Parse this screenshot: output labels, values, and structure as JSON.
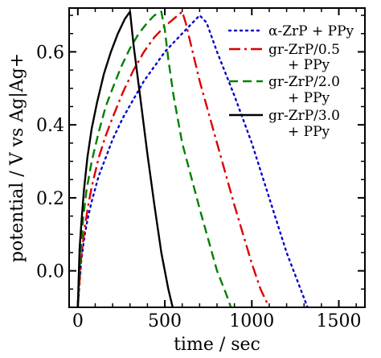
{
  "chart_data": {
    "type": "line",
    "title": "",
    "xlabel": "time / sec",
    "ylabel": "potential / V vs Ag|Ag+",
    "xlim": [
      -50,
      1650
    ],
    "ylim": [
      -0.1,
      0.72
    ],
    "x_ticks": [
      0,
      500,
      1000,
      1500
    ],
    "x_tick_labels": [
      "0",
      "500",
      "1000",
      "1500"
    ],
    "y_ticks": [
      0.0,
      0.2,
      0.4,
      0.6
    ],
    "y_tick_labels": [
      "0.0",
      "0.2",
      "0.4",
      "0.6"
    ],
    "grid": false,
    "legend_position": "top-right",
    "series": [
      {
        "name": "α-ZrP + PPy",
        "legend_lines": [
          "α-ZrP + PPy"
        ],
        "color": "#0000cc",
        "dash": "dotted",
        "x": [
          0,
          20,
          40,
          60,
          80,
          120,
          160,
          200,
          260,
          320,
          380,
          440,
          500,
          560,
          620,
          660,
          700,
          740,
          800,
          900,
          1000,
          1100,
          1200,
          1280,
          1320
        ],
        "y": [
          -0.1,
          0.03,
          0.1,
          0.15,
          0.19,
          0.26,
          0.31,
          0.36,
          0.42,
          0.47,
          0.52,
          0.56,
          0.6,
          0.63,
          0.66,
          0.68,
          0.7,
          0.68,
          0.6,
          0.48,
          0.35,
          0.2,
          0.05,
          -0.05,
          -0.1
        ]
      },
      {
        "name": "gr-ZrP/0.5 + PPy",
        "legend_lines": [
          "gr-ZrP/0.5",
          "+ PPy"
        ],
        "color": "#dd0000",
        "dash": "dashdot",
        "x": [
          0,
          20,
          40,
          60,
          80,
          120,
          160,
          200,
          260,
          320,
          380,
          440,
          500,
          550,
          600,
          620,
          650,
          700,
          800,
          900,
          1000,
          1050,
          1100
        ],
        "y": [
          -0.1,
          0.04,
          0.12,
          0.18,
          0.23,
          0.31,
          0.37,
          0.42,
          0.49,
          0.55,
          0.6,
          0.64,
          0.67,
          0.69,
          0.71,
          0.68,
          0.62,
          0.52,
          0.35,
          0.18,
          0.02,
          -0.05,
          -0.1
        ]
      },
      {
        "name": "gr-ZrP/2.0 + PPy",
        "legend_lines": [
          "gr-ZrP/2.0",
          "+ PPy"
        ],
        "color": "#008000",
        "dash": "dashed",
        "x": [
          0,
          15,
          30,
          50,
          80,
          120,
          160,
          200,
          250,
          300,
          350,
          400,
          440,
          480,
          500,
          520,
          550,
          600,
          700,
          800,
          850,
          880
        ],
        "y": [
          -0.1,
          0.05,
          0.14,
          0.22,
          0.3,
          0.38,
          0.45,
          0.5,
          0.56,
          0.61,
          0.65,
          0.68,
          0.7,
          0.71,
          0.66,
          0.58,
          0.48,
          0.35,
          0.17,
          0.0,
          -0.06,
          -0.1
        ]
      },
      {
        "name": "gr-ZrP/3.0 + PPy",
        "legend_lines": [
          "gr-ZrP/3.0",
          "+ PPy"
        ],
        "color": "#000000",
        "dash": "solid",
        "x": [
          0,
          10,
          20,
          35,
          55,
          80,
          110,
          150,
          190,
          230,
          270,
          300,
          320,
          360,
          400,
          440,
          480,
          520,
          545
        ],
        "y": [
          -0.1,
          0.06,
          0.13,
          0.22,
          0.31,
          0.39,
          0.46,
          0.54,
          0.6,
          0.65,
          0.69,
          0.71,
          0.62,
          0.47,
          0.32,
          0.18,
          0.05,
          -0.05,
          -0.1
        ]
      }
    ]
  }
}
